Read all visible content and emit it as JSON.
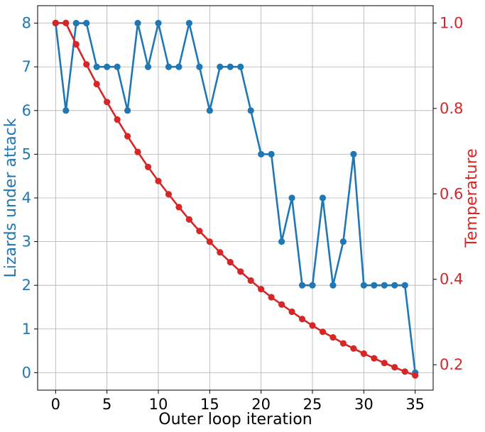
{
  "chart_data": {
    "type": "line",
    "title": "",
    "xlabel": "Outer loop iteration",
    "ylabel_left": "Lizards under attack",
    "ylabel_right": "Temperature",
    "grid": true,
    "xlim": [
      -1.75,
      36.75
    ],
    "ylim_left": [
      -0.4,
      8.4
    ],
    "ylim_right": [
      0.1405,
      1.0405
    ],
    "x_ticks": [
      0,
      5,
      10,
      15,
      20,
      25,
      30,
      35
    ],
    "y_left_ticks": [
      0,
      1,
      2,
      3,
      4,
      5,
      6,
      7,
      8
    ],
    "y_right_ticks": [
      0.2,
      0.4,
      0.6,
      0.8,
      1.0
    ],
    "y_right_tick_labels": [
      "0.2",
      "0.4",
      "0.6",
      "0.8",
      "1.0"
    ],
    "colors": {
      "lizards": "#1f77b4",
      "temperature": "#d62728",
      "grid": "#b0b0b0"
    },
    "x": [
      0,
      1,
      2,
      3,
      4,
      5,
      6,
      7,
      8,
      9,
      10,
      11,
      12,
      13,
      14,
      15,
      16,
      17,
      18,
      19,
      20,
      21,
      22,
      23,
      24,
      25,
      26,
      27,
      28,
      29,
      30,
      31,
      32,
      33,
      34,
      35
    ],
    "series": [
      {
        "name": "Lizards under attack",
        "axis": "left",
        "values": [
          8,
          6,
          8,
          8,
          7,
          7,
          7,
          6,
          8,
          7,
          8,
          7,
          7,
          8,
          7,
          6,
          7,
          7,
          7,
          6,
          5,
          5,
          3,
          4,
          2,
          2,
          4,
          2,
          3,
          5,
          2,
          2,
          2,
          2,
          2,
          0
        ]
      },
      {
        "name": "Temperature",
        "axis": "right",
        "values": [
          1.0,
          1.0,
          0.95,
          0.903,
          0.857,
          0.815,
          0.774,
          0.735,
          0.698,
          0.663,
          0.63,
          0.599,
          0.569,
          0.54,
          0.513,
          0.488,
          0.463,
          0.44,
          0.418,
          0.397,
          0.377,
          0.358,
          0.341,
          0.324,
          0.307,
          0.292,
          0.277,
          0.264,
          0.25,
          0.238,
          0.226,
          0.215,
          0.204,
          0.194,
          0.184,
          0.175
        ]
      }
    ]
  }
}
